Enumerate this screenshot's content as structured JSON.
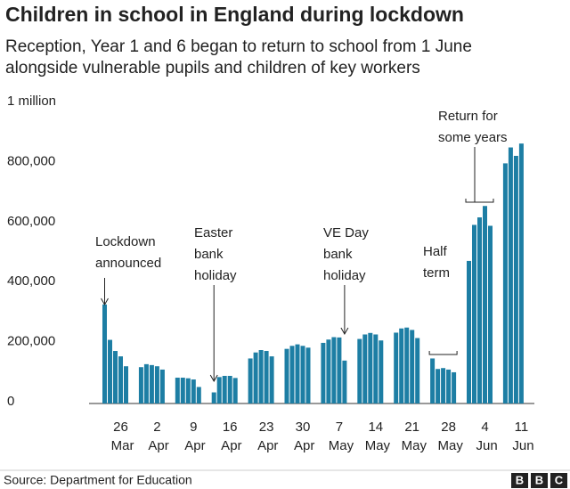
{
  "chart_data": {
    "type": "bar",
    "title": "Children in school in England during lockdown",
    "subtitle": [
      "Reception, Year 1 and 6 began to return to school from 1 June",
      "alongside vulnerable pupils and children of key workers"
    ],
    "categories": [
      null,
      null,
      null,
      "26 Mar",
      null,
      null,
      null,
      null,
      "2 Apr",
      null,
      null,
      null,
      null,
      "9 Apr",
      null,
      null,
      null,
      null,
      "16 Apr",
      null,
      null,
      null,
      null,
      "23 Apr",
      null,
      null,
      null,
      null,
      "30 Apr",
      null,
      null,
      null,
      null,
      "7 May",
      null,
      null,
      null,
      null,
      "14 May",
      null,
      null,
      null,
      null,
      "21 May",
      null,
      null,
      null,
      null,
      "28 May",
      null,
      null,
      null,
      null,
      "4 Jun",
      null,
      null,
      null,
      null,
      "11 Jun"
    ],
    "values": [
      330000,
      212000,
      175000,
      157000,
      124000,
      121000,
      131000,
      128000,
      124000,
      113000,
      86000,
      86000,
      84000,
      80000,
      55000,
      37000,
      88000,
      92000,
      92000,
      85000,
      150000,
      170000,
      178000,
      175000,
      157000,
      182000,
      192000,
      197000,
      192000,
      186000,
      202000,
      213000,
      221000,
      220000,
      143000,
      215000,
      230000,
      235000,
      230000,
      210000,
      236000,
      250000,
      253000,
      245000,
      218000,
      150000,
      115000,
      118000,
      113000,
      104000,
      475000,
      595000,
      620000,
      658000,
      592000,
      800000,
      853000,
      825000,
      866000
    ],
    "color": "#1d7ea4",
    "ylim": [
      0,
      1000000
    ],
    "yticks": [
      0,
      {
        "value": 200000,
        "label": "200,000"
      },
      {
        "value": 400000,
        "label": "400,000"
      },
      {
        "value": 600000,
        "label": "600,000"
      },
      {
        "value": 800000,
        "label": "800,000"
      },
      {
        "value": 1000000,
        "label": "1 million"
      }
    ],
    "grid": false,
    "annotations": [
      {
        "lines": [
          "Lockdown",
          "announced"
        ]
      },
      {
        "lines": [
          "Easter",
          "bank",
          "holiday"
        ]
      },
      {
        "lines": [
          "VE Day",
          "bank",
          "holiday"
        ]
      },
      {
        "lines": [
          "Half",
          "term"
        ]
      },
      {
        "lines": [
          "Return for",
          "some years"
        ]
      }
    ],
    "source": "Source: Department for Education",
    "logo": [
      "B",
      "B",
      "C"
    ]
  }
}
